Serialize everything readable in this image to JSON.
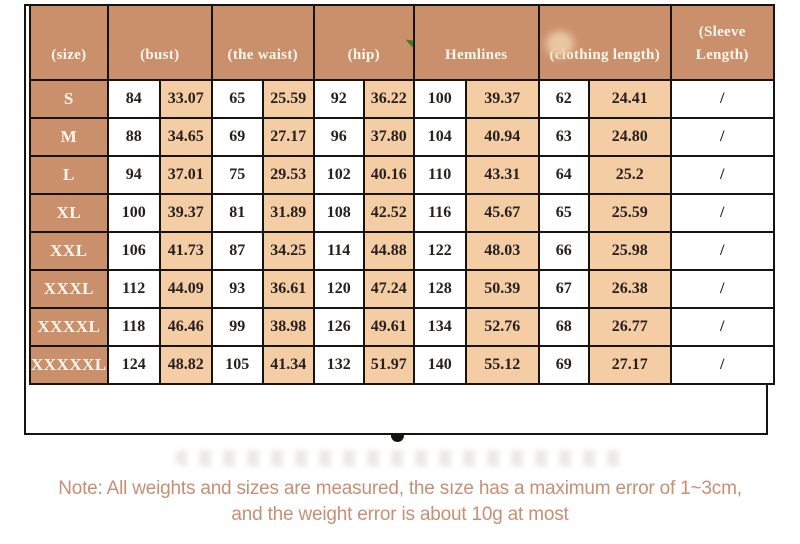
{
  "colors": {
    "header_bg": "#c9906b",
    "header_text": "#fcf7ee",
    "accent_cell_bg": "#f5cda4",
    "table_text": "#26211f",
    "border": "#161311",
    "note_text": "#c78f74",
    "marker_green": "#3c7d22",
    "page_bg": "#ffffff"
  },
  "size_chart": {
    "column_groups": [
      {
        "key": "size",
        "label": "(size)",
        "span": 1
      },
      {
        "key": "bust",
        "label": "(bust)",
        "span": 2
      },
      {
        "key": "waist",
        "label": "(the waist)",
        "span": 2
      },
      {
        "key": "hip",
        "label": "(hip)",
        "span": 2
      },
      {
        "key": "hemlines",
        "label": "Hemlines",
        "span": 2
      },
      {
        "key": "clothing_length",
        "label": "(clothing length)",
        "span": 2
      },
      {
        "key": "sleeve_length",
        "label": "(Sleeve Length)",
        "span": 1
      }
    ],
    "rows": [
      {
        "cells": [
          "S",
          "84",
          "33.07",
          "65",
          "25.59",
          "92",
          "36.22",
          "100",
          "39.37",
          "62",
          "24.41",
          "/"
        ]
      },
      {
        "cells": [
          "M",
          "88",
          "34.65",
          "69",
          "27.17",
          "96",
          "37.80",
          "104",
          "40.94",
          "63",
          "24.80",
          "/"
        ]
      },
      {
        "cells": [
          "L",
          "94",
          "37.01",
          "75",
          "29.53",
          "102",
          "40.16",
          "110",
          "43.31",
          "64",
          "25.2",
          "/"
        ]
      },
      {
        "cells": [
          "XL",
          "100",
          "39.37",
          "81",
          "31.89",
          "108",
          "42.52",
          "116",
          "45.67",
          "65",
          "25.59",
          "/"
        ]
      },
      {
        "cells": [
          "XXL",
          "106",
          "41.73",
          "87",
          "34.25",
          "114",
          "44.88",
          "122",
          "48.03",
          "66",
          "25.98",
          "/"
        ]
      },
      {
        "cells": [
          "XXXL",
          "112",
          "44.09",
          "93",
          "36.61",
          "120",
          "47.24",
          "128",
          "50.39",
          "67",
          "26.38",
          "/"
        ]
      },
      {
        "cells": [
          "XXXXL",
          "118",
          "46.46",
          "99",
          "38.98",
          "126",
          "49.61",
          "134",
          "52.76",
          "68",
          "26.77",
          "/"
        ]
      },
      {
        "cells": [
          "XXXXXL",
          "124",
          "48.82",
          "105",
          "41.34",
          "132",
          "51.97",
          "140",
          "55.12",
          "69",
          "27.17",
          "/"
        ]
      }
    ]
  },
  "note": {
    "line1": "Note: All weights and sizes are measured, the sıze has a maximum error of 1~3cm,",
    "line2": "and the weight error is about 10g at most"
  },
  "chart_data": {
    "type": "table",
    "title": "",
    "columns": [
      "(size)",
      "(bust)",
      "(bust)",
      "(the waist)",
      "(the waist)",
      "(hip)",
      "(hip)",
      "Hemlines",
      "Hemlines",
      "(clothing length)",
      "(clothing length)",
      "(Sleeve Length)"
    ],
    "rows": [
      [
        "S",
        84,
        33.07,
        65,
        25.59,
        92,
        36.22,
        100,
        39.37,
        62,
        24.41,
        "/"
      ],
      [
        "M",
        88,
        34.65,
        69,
        27.17,
        96,
        37.8,
        104,
        40.94,
        63,
        24.8,
        "/"
      ],
      [
        "L",
        94,
        37.01,
        75,
        29.53,
        102,
        40.16,
        110,
        43.31,
        64,
        25.2,
        "/"
      ],
      [
        "XL",
        100,
        39.37,
        81,
        31.89,
        108,
        42.52,
        116,
        45.67,
        65,
        25.59,
        "/"
      ],
      [
        "XXL",
        106,
        41.73,
        87,
        34.25,
        114,
        44.88,
        122,
        48.03,
        66,
        25.98,
        "/"
      ],
      [
        "XXXL",
        112,
        44.09,
        93,
        36.61,
        120,
        47.24,
        128,
        50.39,
        67,
        26.38,
        "/"
      ],
      [
        "XXXXL",
        118,
        46.46,
        99,
        38.98,
        126,
        49.61,
        134,
        52.76,
        68,
        26.77,
        "/"
      ],
      [
        "XXXXXL",
        124,
        48.82,
        105,
        41.34,
        132,
        51.97,
        140,
        55.12,
        69,
        27.17,
        "/"
      ]
    ]
  }
}
